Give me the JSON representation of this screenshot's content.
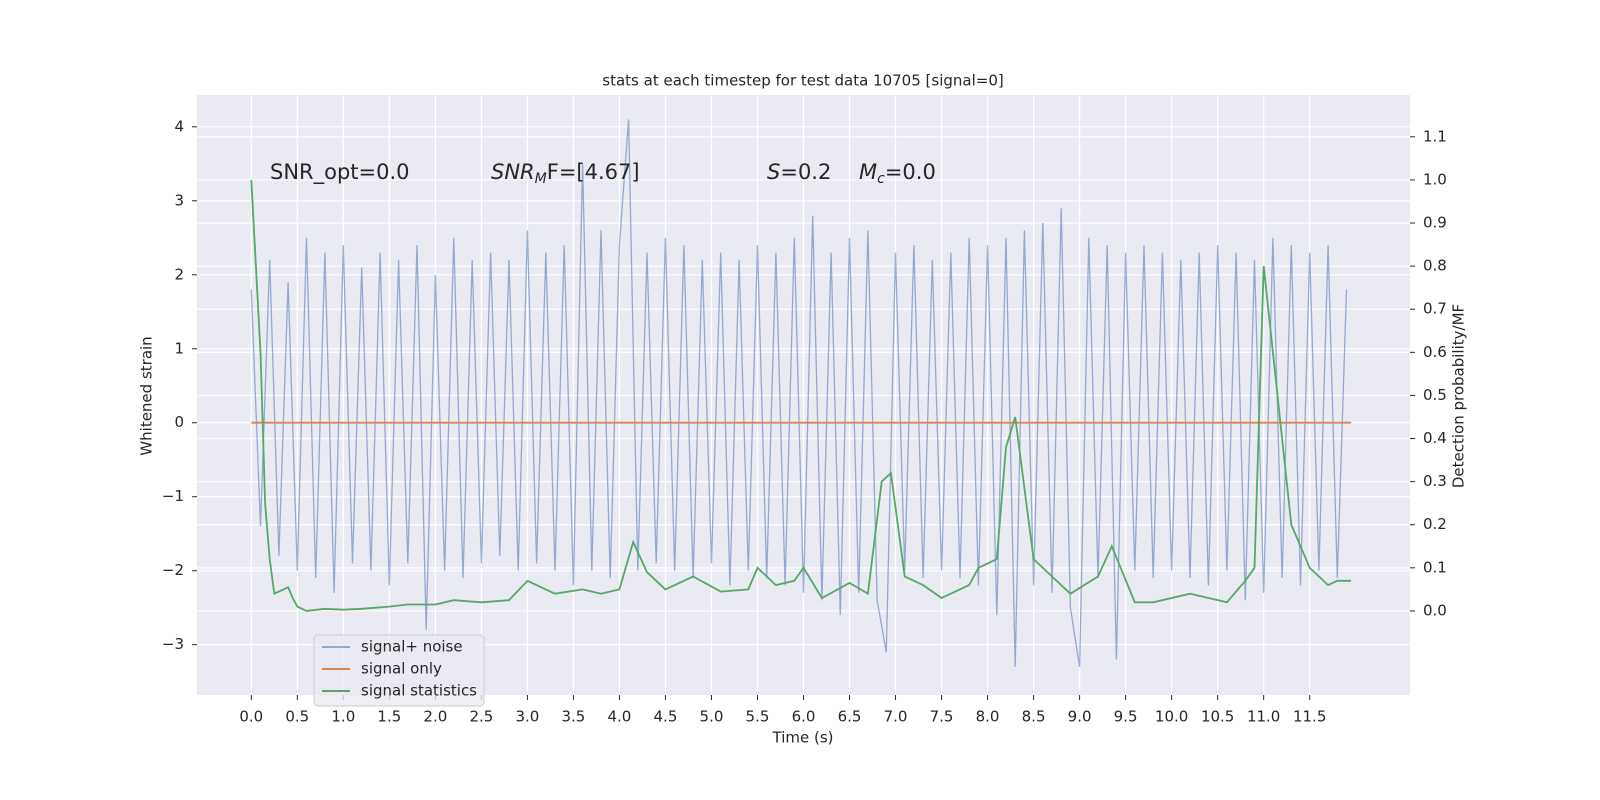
{
  "chart_data": {
    "type": "line",
    "title": "stats at each timestep for test data 10705 [signal=0]",
    "x_label": "Time (s)",
    "y_label": "Whitened strain",
    "y2_label": "Detection probability/MF",
    "annotations": [
      {
        "base": "SNR_opt=0.0"
      },
      {
        "base": "SNR",
        "sub": "M",
        "tail": "F=[4.67]"
      },
      {
        "base": "S",
        "tail": "=0.2"
      },
      {
        "base": "M",
        "sub": "c",
        "tail": "=0.0"
      }
    ],
    "xlim": [
      -0.59,
      12.59
    ],
    "ylim": [
      -3.68,
      4.43
    ],
    "y2lim": [
      -0.195,
      1.197
    ],
    "grid": true,
    "legend": "lower left",
    "xticks": [
      {
        "value": 0,
        "label": "0.0"
      },
      {
        "value": 0.5,
        "label": "0.5"
      },
      {
        "value": 1,
        "label": "1.0"
      },
      {
        "value": 1.5,
        "label": "1.5"
      },
      {
        "value": 2,
        "label": "2.0"
      },
      {
        "value": 2.5,
        "label": "2.5"
      },
      {
        "value": 3,
        "label": "3.0"
      },
      {
        "value": 3.5,
        "label": "3.5"
      },
      {
        "value": 4,
        "label": "4.0"
      },
      {
        "value": 4.5,
        "label": "4.5"
      },
      {
        "value": 5,
        "label": "5.0"
      },
      {
        "value": 5.5,
        "label": "5.5"
      },
      {
        "value": 6,
        "label": "6.0"
      },
      {
        "value": 6.5,
        "label": "6.5"
      },
      {
        "value": 7,
        "label": "7.0"
      },
      {
        "value": 7.5,
        "label": "7.5"
      },
      {
        "value": 8,
        "label": "8.0"
      },
      {
        "value": 8.5,
        "label": "8.5"
      },
      {
        "value": 9,
        "label": "9.0"
      },
      {
        "value": 9.5,
        "label": "9.5"
      },
      {
        "value": 10,
        "label": "10.0"
      },
      {
        "value": 10.5,
        "label": "10.5"
      },
      {
        "value": 11,
        "label": "11.0"
      },
      {
        "value": 11.5,
        "label": "11.5"
      }
    ],
    "yticks": [
      {
        "value": -3,
        "label": "−3"
      },
      {
        "value": -2,
        "label": "−2"
      },
      {
        "value": -1,
        "label": "−1"
      },
      0,
      1,
      2,
      3,
      4
    ],
    "y2ticks": [
      {
        "value": 0,
        "label": "0.0"
      },
      {
        "value": 0.1,
        "label": "0.1"
      },
      {
        "value": 0.2,
        "label": "0.2"
      },
      {
        "value": 0.3,
        "label": "0.3"
      },
      {
        "value": 0.4,
        "label": "0.4"
      },
      {
        "value": 0.5,
        "label": "0.5"
      },
      {
        "value": 0.6,
        "label": "0.6"
      },
      {
        "value": 0.7,
        "label": "0.7"
      },
      {
        "value": 0.8,
        "label": "0.8"
      },
      {
        "value": 0.9,
        "label": "0.9"
      },
      {
        "value": 1,
        "label": "1.0"
      },
      {
        "value": 1.1,
        "label": "1.1"
      }
    ],
    "series": [
      {
        "name": "signal+ noise",
        "color": "#4c72b0",
        "x": [
          0.0,
          0.1,
          0.2,
          0.3,
          0.4,
          0.5,
          0.6,
          0.7,
          0.8,
          0.9,
          1.0,
          1.1,
          1.2,
          1.3,
          1.4,
          1.5,
          1.6,
          1.7,
          1.8,
          1.9,
          2.0,
          2.1,
          2.2,
          2.3,
          2.4,
          2.5,
          2.6,
          2.7,
          2.8,
          2.9,
          3.0,
          3.1,
          3.2,
          3.3,
          3.4,
          3.5,
          3.6,
          3.7,
          3.8,
          3.9,
          4.0,
          4.1,
          4.2,
          4.3,
          4.4,
          4.5,
          4.6,
          4.7,
          4.8,
          4.9,
          5.0,
          5.1,
          5.2,
          5.3,
          5.4,
          5.5,
          5.6,
          5.7,
          5.8,
          5.9,
          6.0,
          6.1,
          6.2,
          6.3,
          6.4,
          6.5,
          6.6,
          6.7,
          6.8,
          6.9,
          7.0,
          7.1,
          7.2,
          7.3,
          7.4,
          7.5,
          7.6,
          7.7,
          7.8,
          7.9,
          8.0,
          8.1,
          8.2,
          8.3,
          8.4,
          8.5,
          8.6,
          8.7,
          8.8,
          8.9,
          9.0,
          9.1,
          9.2,
          9.3,
          9.4,
          9.5,
          9.6,
          9.7,
          9.8,
          9.9,
          10.0,
          10.1,
          10.2,
          10.3,
          10.4,
          10.5,
          10.6,
          10.7,
          10.8,
          10.9,
          11.0,
          11.1,
          11.2,
          11.3,
          11.4,
          11.5,
          11.6,
          11.7,
          11.8,
          11.9
        ],
        "values": [
          1.8,
          -1.4,
          2.2,
          -1.8,
          1.9,
          -2.0,
          2.5,
          -2.1,
          2.3,
          -2.3,
          2.4,
          -1.9,
          2.1,
          -2.0,
          2.3,
          -2.2,
          2.2,
          -1.9,
          2.4,
          -2.8,
          2.0,
          -2.0,
          2.5,
          -2.1,
          2.2,
          -1.9,
          2.3,
          -1.8,
          2.2,
          -2.0,
          2.6,
          -1.9,
          2.3,
          -2.0,
          2.4,
          -2.2,
          3.5,
          -2.0,
          2.6,
          -2.1,
          2.4,
          4.1,
          -2.0,
          2.3,
          -1.9,
          2.5,
          -2.0,
          2.4,
          -2.1,
          2.2,
          -1.9,
          2.3,
          -2.2,
          2.2,
          -2.0,
          2.4,
          -2.1,
          2.3,
          -2.2,
          2.5,
          -2.3,
          2.8,
          -2.4,
          2.3,
          -2.6,
          2.5,
          -2.3,
          2.6,
          -2.4,
          -3.1,
          2.3,
          -2.0,
          2.4,
          -2.1,
          2.2,
          -2.0,
          2.3,
          -2.1,
          2.5,
          -2.2,
          2.4,
          -2.6,
          2.5,
          -3.3,
          2.6,
          -2.2,
          2.7,
          -2.3,
          2.9,
          -2.5,
          -3.3,
          2.5,
          -2.1,
          2.4,
          -3.2,
          2.3,
          -2.0,
          2.4,
          -2.1,
          2.3,
          -2.0,
          2.2,
          -2.1,
          2.3,
          -2.2,
          2.4,
          -2.0,
          2.3,
          -2.4,
          2.2,
          -2.3,
          2.5,
          -2.1,
          2.4,
          -2.2,
          2.3,
          -2.0,
          2.4,
          -2.1,
          1.8
        ]
      },
      {
        "name": "signal only",
        "color": "#dd8452",
        "x": [
          0.0,
          11.95
        ],
        "values": [
          0,
          0
        ]
      },
      {
        "name": "signal statistics",
        "color": "#55a868",
        "axis": "y2",
        "x": [
          0,
          0.1,
          0.15,
          0.2,
          0.25,
          0.35,
          0.4,
          0.45,
          0.5,
          0.6,
          0.8,
          1.0,
          1.2,
          1.5,
          1.7,
          2.0,
          2.2,
          2.5,
          2.8,
          3.0,
          3.3,
          3.6,
          3.8,
          4.0,
          4.15,
          4.3,
          4.5,
          4.8,
          5.1,
          5.4,
          5.5,
          5.7,
          5.9,
          6.0,
          6.2,
          6.5,
          6.7,
          6.85,
          6.95,
          7.1,
          7.3,
          7.5,
          7.8,
          7.9,
          8.1,
          8.2,
          8.3,
          8.5,
          8.7,
          8.9,
          9.2,
          9.35,
          9.6,
          9.8,
          10.2,
          10.6,
          10.8,
          10.9,
          11.0,
          11.1,
          11.3,
          11.5,
          11.7,
          11.8,
          11.95
        ],
        "values": [
          1.0,
          0.6,
          0.25,
          0.12,
          0.04,
          0.05,
          0.055,
          0.03,
          0.01,
          0.0,
          0.005,
          0.003,
          0.005,
          0.01,
          0.015,
          0.015,
          0.025,
          0.02,
          0.025,
          0.07,
          0.04,
          0.05,
          0.04,
          0.05,
          0.16,
          0.09,
          0.05,
          0.08,
          0.045,
          0.05,
          0.1,
          0.06,
          0.07,
          0.1,
          0.03,
          0.065,
          0.04,
          0.3,
          0.32,
          0.08,
          0.06,
          0.03,
          0.06,
          0.1,
          0.12,
          0.38,
          0.45,
          0.12,
          0.08,
          0.04,
          0.08,
          0.15,
          0.02,
          0.02,
          0.04,
          0.02,
          0.07,
          0.1,
          0.8,
          0.6,
          0.2,
          0.1,
          0.06,
          0.07,
          0.07
        ]
      }
    ]
  }
}
